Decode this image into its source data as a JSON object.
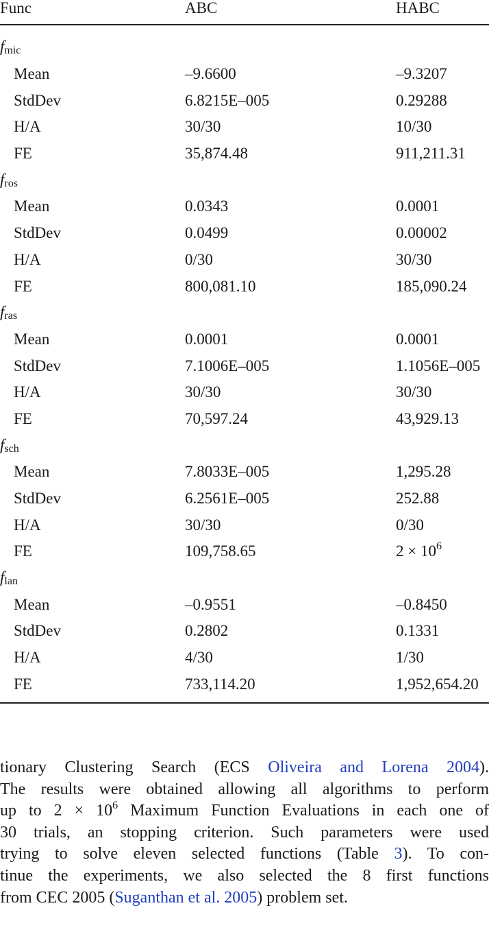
{
  "table": {
    "header": [
      "Func",
      "ABC",
      "HABC"
    ],
    "groups": [
      {
        "function": {
          "symbol": "f",
          "subscript": "mic"
        },
        "rows": [
          [
            "Mean",
            "–9.6600",
            "–9.3207"
          ],
          [
            "StdDev",
            "6.8215E–005",
            "0.29288"
          ],
          [
            "H/A",
            "30/30",
            "10/30"
          ],
          [
            "FE",
            "35,874.48",
            "911,211.31"
          ]
        ]
      },
      {
        "function": {
          "symbol": "f",
          "subscript": "ros"
        },
        "rows": [
          [
            "Mean",
            "0.0343",
            "0.0001"
          ],
          [
            "StdDev",
            "0.0499",
            "0.00002"
          ],
          [
            "H/A",
            "0/30",
            "30/30"
          ],
          [
            "FE",
            "800,081.10",
            "185,090.24"
          ]
        ]
      },
      {
        "function": {
          "symbol": "f",
          "subscript": "ras"
        },
        "rows": [
          [
            "Mean",
            "0.0001",
            "0.0001"
          ],
          [
            "StdDev",
            "7.1006E–005",
            "1.1056E–005"
          ],
          [
            "H/A",
            "30/30",
            "30/30"
          ],
          [
            "FE",
            "70,597.24",
            "43,929.13"
          ]
        ]
      },
      {
        "function": {
          "symbol": "f",
          "subscript": "sch"
        },
        "rows": [
          [
            "Mean",
            "7.8033E–005",
            "1,295.28"
          ],
          [
            "StdDev",
            "6.2561E–005",
            "252.88"
          ],
          [
            "H/A",
            "30/30",
            "0/30"
          ],
          [
            "FE",
            "109,758.65",
            {
              "base": "2 × 10",
              "exponent": "6"
            }
          ]
        ]
      },
      {
        "function": {
          "symbol": "f",
          "subscript": "lan"
        },
        "rows": [
          [
            "Mean",
            "–0.9551",
            "–0.8450"
          ],
          [
            "StdDev",
            "0.2802",
            "0.1331"
          ],
          [
            "H/A",
            "4/30",
            "1/30"
          ],
          [
            "FE",
            "733,114.20",
            "1,952,654.20"
          ]
        ]
      }
    ]
  },
  "paragraph": {
    "lines": [
      [
        {
          "text": "tionary Clustering Search (ECS "
        },
        {
          "text": "Oliveira and Lorena 2004",
          "style": "link"
        },
        {
          "text": ")."
        }
      ],
      [
        {
          "text": "The results were obtained allowing all algorithms to perform"
        }
      ],
      [
        {
          "text": "up to 2 × 10"
        },
        {
          "text": "6",
          "style": "sup"
        },
        {
          "text": " Maximum Function Evaluations in each one of"
        }
      ],
      [
        {
          "text": "30 trials, an stopping criterion. Such parameters were used"
        }
      ],
      [
        {
          "text": "trying to solve eleven selected functions (Table "
        },
        {
          "text": "3",
          "style": "link"
        },
        {
          "text": "). To con-"
        }
      ],
      [
        {
          "text": "tinue the experiments, we also selected the 8 first functions"
        }
      ],
      [
        {
          "text": "from CEC 2005 ("
        },
        {
          "text": "Suganthan et al. 2005",
          "style": "link"
        },
        {
          "text": ") problem set."
        }
      ]
    ]
  }
}
